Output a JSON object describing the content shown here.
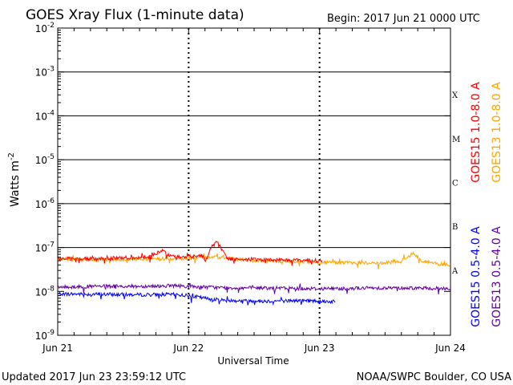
{
  "chart_data": {
    "type": "line",
    "title": "GOES Xray Flux (1-minute data)",
    "begin_label": "Begin:  2017 Jun 21 0000 UTC",
    "xlabel": "Universal Time",
    "ylabel": "Watts m",
    "ylabel_exp": "-2",
    "y_scale": "log",
    "ylim": [
      1e-09,
      0.01
    ],
    "xlim": [
      0,
      3
    ],
    "y_tick_labels": [
      {
        "exp": -2,
        "base": "10",
        "sup": "-2"
      },
      {
        "exp": -3,
        "base": "10",
        "sup": "-3"
      },
      {
        "exp": -4,
        "base": "10",
        "sup": "-4"
      },
      {
        "exp": -5,
        "base": "10",
        "sup": "-5"
      },
      {
        "exp": -6,
        "base": "10",
        "sup": "-6"
      },
      {
        "exp": -7,
        "base": "10",
        "sup": "-7"
      },
      {
        "exp": -8,
        "base": "10",
        "sup": "-8"
      },
      {
        "exp": -9,
        "base": "10",
        "sup": "-9"
      }
    ],
    "x_tick_labels": [
      {
        "day": 0,
        "label": "Jun 21"
      },
      {
        "day": 1,
        "label": "Jun 22"
      },
      {
        "day": 2,
        "label": "Jun 23"
      },
      {
        "day": 3,
        "label": "Jun 24"
      }
    ],
    "flare_classes": [
      {
        "label": "X",
        "exp": -4
      },
      {
        "label": "M",
        "exp": -5
      },
      {
        "label": "C",
        "exp": -6
      },
      {
        "label": "B",
        "exp": -7
      },
      {
        "label": "A",
        "exp": -8
      }
    ],
    "grid": "horizontal lines at each decade above 1e-8; dotted vertical day separators",
    "legend_placement": "right, vertical text",
    "series": [
      {
        "name": "GOES15 1.0-8.0 A",
        "color": "#ff0000",
        "points": [
          [
            0,
            5.6e-08
          ],
          [
            0.25,
            5.5e-08
          ],
          [
            0.5,
            5.8e-08
          ],
          [
            0.7,
            6.2e-08
          ],
          [
            0.8,
            8.5e-08
          ],
          [
            0.85,
            6.5e-08
          ],
          [
            0.95,
            6e-08
          ],
          [
            1.05,
            6.3e-08
          ],
          [
            1.1,
            6.8e-08
          ],
          [
            1.13,
            4.8e-08
          ],
          [
            1.17,
            1e-07
          ],
          [
            1.22,
            1.4e-07
          ],
          [
            1.26,
            8e-08
          ],
          [
            1.3,
            5.5e-08
          ],
          [
            1.5,
            5.3e-08
          ],
          [
            1.8,
            5.2e-08
          ],
          [
            2.0,
            5e-08
          ],
          [
            2.02,
            5.1e-08
          ]
        ]
      },
      {
        "name": "GOES13 1.0-8.0 A",
        "color": "#ffa500",
        "points": [
          [
            0,
            5.4e-08
          ],
          [
            0.3,
            5.2e-08
          ],
          [
            0.6,
            5.4e-08
          ],
          [
            0.9,
            5.6e-08
          ],
          [
            1.1,
            5.8e-08
          ],
          [
            1.25,
            6e-08
          ],
          [
            1.5,
            5e-08
          ],
          [
            1.8,
            4.8e-08
          ],
          [
            2.0,
            4.6e-08
          ],
          [
            2.2,
            4.5e-08
          ],
          [
            2.5,
            4.4e-08
          ],
          [
            2.62,
            4.8e-08
          ],
          [
            2.72,
            7.5e-08
          ],
          [
            2.78,
            5e-08
          ],
          [
            2.9,
            4.2e-08
          ],
          [
            3.0,
            4.1e-08
          ]
        ]
      },
      {
        "name": "GOES15 0.5-4.0 A",
        "color": "#0000ff",
        "points": [
          [
            0,
            8.8e-09
          ],
          [
            0.3,
            8.6e-09
          ],
          [
            0.6,
            8.4e-09
          ],
          [
            0.9,
            8.5e-09
          ],
          [
            1.0,
            8e-09
          ],
          [
            1.15,
            6.8e-09
          ],
          [
            1.3,
            6.2e-09
          ],
          [
            1.6,
            6e-09
          ],
          [
            1.9,
            6.2e-09
          ],
          [
            2.0,
            6e-09
          ],
          [
            2.12,
            5.8e-09
          ]
        ]
      },
      {
        "name": "GOES13 0.5-4.0 A",
        "color": "#6000a0",
        "points": [
          [
            0,
            1.25e-08
          ],
          [
            0.3,
            1.3e-08
          ],
          [
            0.6,
            1.3e-08
          ],
          [
            0.9,
            1.35e-08
          ],
          [
            1.0,
            1.3e-08
          ],
          [
            1.3,
            1.2e-08
          ],
          [
            1.6,
            1.2e-08
          ],
          [
            2.0,
            1.15e-08
          ],
          [
            2.4,
            1.2e-08
          ],
          [
            2.7,
            1.2e-08
          ],
          [
            3.0,
            1.15e-08
          ]
        ]
      }
    ]
  },
  "footer": {
    "updated": "Updated 2017 Jun 23 23:59:12 UTC",
    "source": "NOAA/SWPC Boulder, CO USA"
  }
}
